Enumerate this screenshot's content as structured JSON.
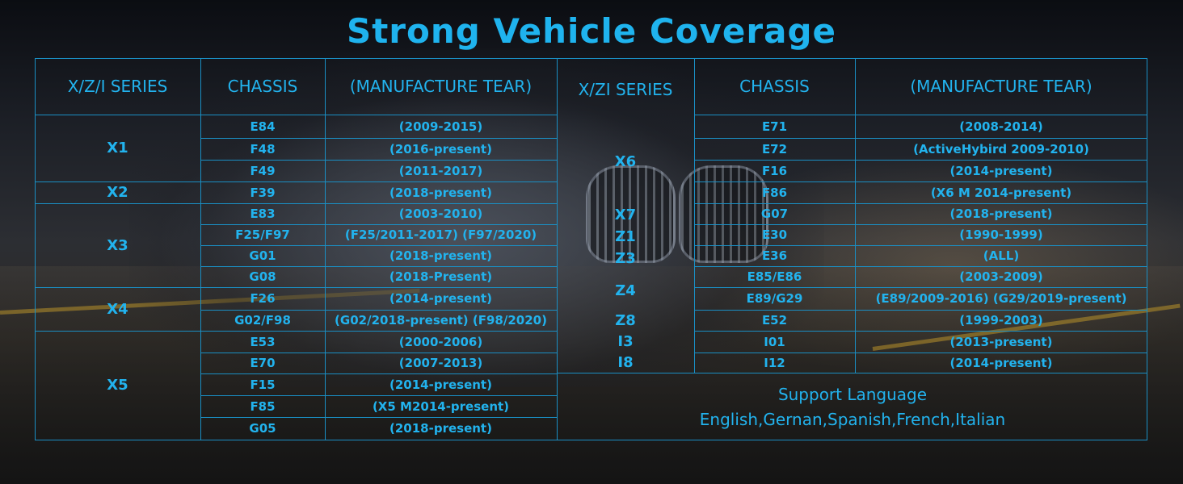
{
  "title": "Strong Vehicle Coverage",
  "left_table": {
    "headers": [
      "X/Z/I SERIES",
      "CHASSIS",
      "(MANUFACTURE TEAR)"
    ],
    "series": [
      "X1",
      "X2",
      "X3",
      "X4",
      "X5"
    ],
    "rows": [
      {
        "chassis": "E84",
        "years": "(2009-2015)"
      },
      {
        "chassis": "F48",
        "years": "(2016-present)"
      },
      {
        "chassis": "F49",
        "years": "(2011-2017)"
      },
      {
        "chassis": "F39",
        "years": "(2018-present)"
      },
      {
        "chassis": "E83",
        "years": "(2003-2010)"
      },
      {
        "chassis": "F25/F97",
        "years": "(F25/2011-2017)   (F97/2020)"
      },
      {
        "chassis": "G01",
        "years": "(2018-present)"
      },
      {
        "chassis": "G08",
        "years": "(2018-Present)"
      },
      {
        "chassis": "F26",
        "years": "(2014-present)"
      },
      {
        "chassis": "G02/F98",
        "years": "(G02/2018-present)   (F98/2020)"
      },
      {
        "chassis": "E53",
        "years": "(2000-2006)"
      },
      {
        "chassis": "E70",
        "years": "(2007-2013)"
      },
      {
        "chassis": "F15",
        "years": "(2014-present)"
      },
      {
        "chassis": "F85",
        "years": "(X5 M2014-present)"
      },
      {
        "chassis": "G05",
        "years": "(2018-present)"
      }
    ]
  },
  "right_table": {
    "headers": [
      "X/ZI SERIES",
      "CHASSIS",
      "(MANUFACTURE TEAR)"
    ],
    "series": [
      "X6",
      "X7",
      "Z1",
      "Z3",
      "Z4",
      "Z8",
      "I3",
      "I8"
    ],
    "rows": [
      {
        "chassis": "E71",
        "years": "(2008-2014)"
      },
      {
        "chassis": "E72",
        "years": "(ActiveHybird 2009-2010)"
      },
      {
        "chassis": "F16",
        "years": "(2014-present)"
      },
      {
        "chassis": "F86",
        "years": "(X6 M 2014-present)"
      },
      {
        "chassis": "G07",
        "years": "(2018-present)"
      },
      {
        "chassis": "E30",
        "years": "(1990-1999)"
      },
      {
        "chassis": "E36",
        "years": "(ALL)"
      },
      {
        "chassis": "E85/E86",
        "years": "(2003-2009)"
      },
      {
        "chassis": "E89/G29",
        "years": "(E89/2009-2016)   (G29/2019-present)"
      },
      {
        "chassis": "E52",
        "years": "(1999-2003)"
      },
      {
        "chassis": "I01",
        "years": "(2013-present)"
      },
      {
        "chassis": "I12",
        "years": "(2014-present)"
      }
    ]
  },
  "support": {
    "heading": "Support Language",
    "languages": "English,Gernan,Spanish,French,Italian"
  },
  "colors": {
    "text": "#22b3ee",
    "lines": "#1a8fc4"
  }
}
